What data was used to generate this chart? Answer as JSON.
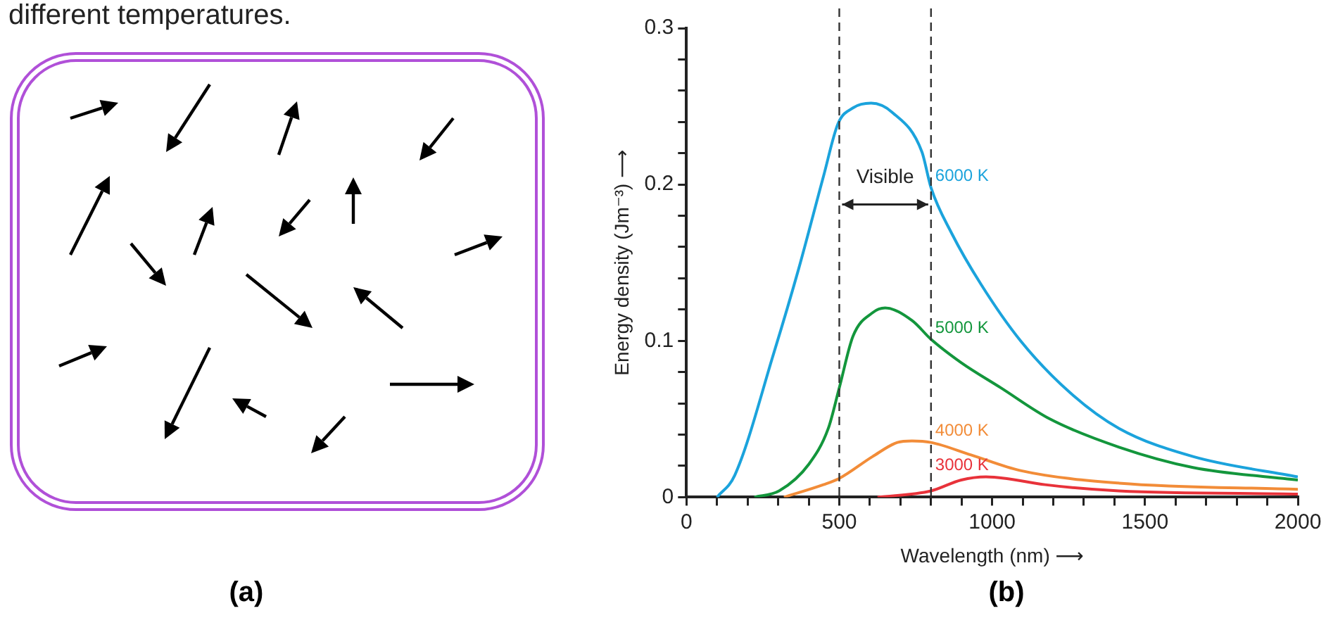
{
  "chart_data": {
    "type": "line",
    "xlabel": "Wavelength (nm) ⟶",
    "ylabel": "Energy density (Jm⁻³) ⟶",
    "xlim": [
      0,
      2000
    ],
    "ylim": [
      0,
      0.3
    ],
    "xticks": [
      0,
      {
        "value": 100,
        "label": null
      },
      {
        "value": 200,
        "label": null
      },
      {
        "value": 300,
        "label": null
      },
      {
        "value": 400,
        "label": null
      },
      500,
      {
        "value": 600,
        "label": null
      },
      {
        "value": 700,
        "label": null
      },
      {
        "value": 800,
        "label": null
      },
      {
        "value": 900,
        "label": null
      },
      1000,
      {
        "value": 1100,
        "label": null
      },
      {
        "value": 1200,
        "label": null
      },
      {
        "value": 1300,
        "label": null
      },
      {
        "value": 1400,
        "label": null
      },
      1500,
      {
        "value": 1600,
        "label": null
      },
      {
        "value": 1700,
        "label": null
      },
      {
        "value": 1800,
        "label": null
      },
      {
        "value": 1900,
        "label": null
      },
      2000
    ],
    "yticks": [
      0,
      {
        "value": 0.02,
        "label": null
      },
      {
        "value": 0.04,
        "label": null
      },
      {
        "value": 0.06,
        "label": null
      },
      {
        "value": 0.08,
        "label": null
      },
      0.1,
      {
        "value": 0.12,
        "label": null
      },
      {
        "value": 0.14,
        "label": null
      },
      {
        "value": 0.16,
        "label": null
      },
      {
        "value": 0.18,
        "label": null
      },
      0.2,
      {
        "value": 0.22,
        "label": null
      },
      {
        "value": 0.24,
        "label": null
      },
      {
        "value": 0.26,
        "label": null
      },
      {
        "value": 0.28,
        "label": null
      },
      0.3
    ],
    "grid": false,
    "legend": false,
    "marker": "none",
    "line_style": "solid",
    "series": [
      {
        "name": "6000 K",
        "color": "#1ba3dc",
        "x": [
          100,
          158,
          287,
          367,
          448,
          496,
          545,
          604,
          674,
          770,
          800,
          867,
          964,
          1093,
          1254,
          1415,
          1657,
          2000
        ],
        "values": [
          0,
          0.014,
          0.093,
          0.146,
          0.205,
          0.239,
          0.249,
          0.252,
          0.246,
          0.221,
          0.198,
          0.169,
          0.136,
          0.1,
          0.067,
          0.044,
          0.026,
          0.013
        ]
      },
      {
        "name": "5000 K",
        "color": "#13963c",
        "x": [
          222,
          303,
          400,
          464,
          500,
          545,
          609,
          650,
          738,
          800,
          899,
          1028,
          1189,
          1415,
          1657,
          2000
        ],
        "values": [
          0,
          0.004,
          0.021,
          0.044,
          0.07,
          0.103,
          0.118,
          0.121,
          0.113,
          0.101,
          0.086,
          0.07,
          0.05,
          0.032,
          0.019,
          0.011
        ]
      },
      {
        "name": "4000 K",
        "color": "#f28c38",
        "x": [
          319,
          448,
          500,
          609,
          690,
          738,
          800,
          931,
          1093,
          1415,
          2000
        ],
        "values": [
          0,
          0.008,
          0.012,
          0.026,
          0.035,
          0.036,
          0.035,
          0.027,
          0.017,
          0.009,
          0.005
        ]
      },
      {
        "name": "3000 K",
        "color": "#e8323a",
        "x": [
          625,
          800,
          899,
          980,
          1044,
          1173,
          1415,
          2000
        ],
        "values": [
          0,
          0.004,
          0.011,
          0.013,
          0.012,
          0.008,
          0.004,
          0.002
        ]
      }
    ],
    "ref_lines": [
      {
        "axis": "x",
        "value": 500,
        "color": "#333333",
        "line_style": "dashed"
      },
      {
        "axis": "x",
        "value": 800,
        "color": "#333333",
        "line_style": "dashed"
      }
    ],
    "annotations": [
      "Visible",
      "different temperatures.",
      "(a)",
      "(b)"
    ]
  }
}
